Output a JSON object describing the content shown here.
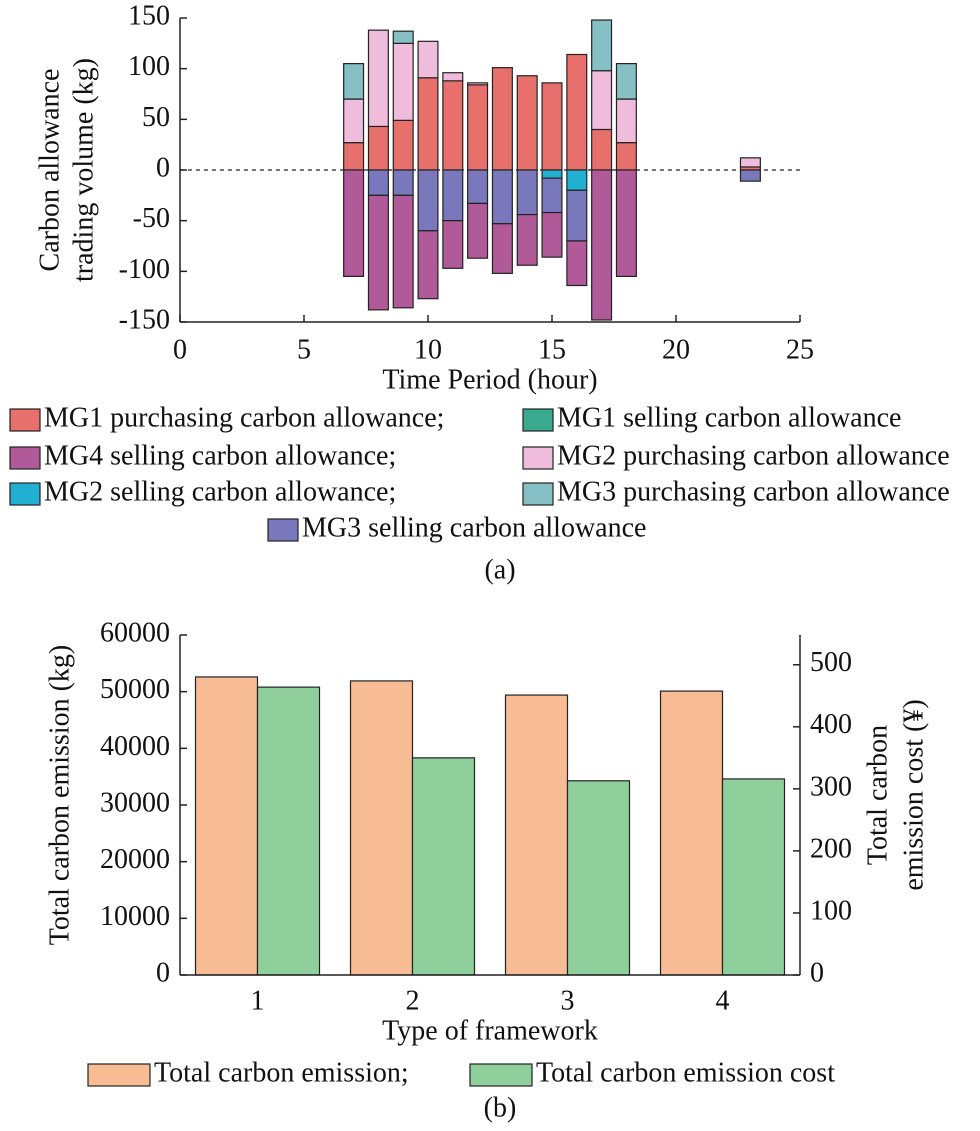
{
  "chart_data": [
    {
      "type": "stacked_bar",
      "ylabel": [
        "Carbon allowance",
        "trading volume (kg)"
      ],
      "xlabel": "Time Period (hour)",
      "caption": "(a)",
      "x": [
        7,
        8,
        9,
        10,
        11,
        12,
        13,
        14,
        15,
        16,
        17,
        18,
        23
      ],
      "xlim": [
        0,
        25
      ],
      "xticks": [
        0,
        5,
        10,
        15,
        20,
        25
      ],
      "ylim": [
        -150,
        150
      ],
      "yticks": [
        -150,
        -100,
        -50,
        0,
        50,
        100,
        150
      ],
      "zero_line": true,
      "series": [
        {
          "name": "MG1 purchasing carbon allowance;",
          "color": "#e8706c",
          "values": [
            27,
            43,
            49,
            91,
            88,
            84,
            101,
            93,
            86,
            114,
            40,
            27,
            3
          ]
        },
        {
          "name": "MG1 selling carbon allowance",
          "color": "#3aaa8e",
          "values": [
            0,
            0,
            0,
            0,
            0,
            0,
            0,
            0,
            0,
            0,
            0,
            0,
            0
          ]
        },
        {
          "name": "MG4 selling carbon allowance;",
          "color": "#b05a9a",
          "values": [
            -105,
            -113,
            -111,
            -67,
            -47,
            -54,
            -49,
            -50,
            -44,
            -44,
            -148,
            -105,
            0
          ]
        },
        {
          "name": "MG2 purchasing carbon allowance",
          "color": "#efbcdc",
          "values": [
            43,
            95,
            76,
            36,
            8,
            2,
            0,
            0,
            0,
            0,
            58,
            43,
            9
          ]
        },
        {
          "name": "MG2 selling carbon allowance;",
          "color": "#22b0d0",
          "values": [
            0,
            0,
            0,
            0,
            0,
            0,
            0,
            0,
            -8,
            -20,
            0,
            0,
            0
          ]
        },
        {
          "name": "MG3 purchasing carbon allowance",
          "color": "#86bfc4",
          "values": [
            35,
            0,
            12,
            0,
            0,
            0,
            0,
            0,
            0,
            0,
            50,
            35,
            0
          ]
        },
        {
          "name": "MG3 selling carbon allowance",
          "color": "#7a78bc",
          "values": [
            0,
            -25,
            -25,
            -60,
            -50,
            -33,
            -53,
            -44,
            -34,
            -50,
            0,
            0,
            -11
          ]
        }
      ]
    },
    {
      "type": "grouped_bar",
      "ylabel": "Total carbon emission (kg)",
      "y2label": [
        "Total carbon",
        "emission cost (¥)"
      ],
      "xlabel": "Type of framework",
      "caption": "(b)",
      "categories": [
        "1",
        "2",
        "3",
        "4"
      ],
      "ylim": [
        0,
        60000
      ],
      "yticks": [
        0,
        10000,
        20000,
        30000,
        40000,
        50000,
        60000
      ],
      "y2lim": [
        0,
        548
      ],
      "y2ticks": [
        0,
        100,
        200,
        300,
        400,
        500
      ],
      "series": [
        {
          "name": "Total carbon emission;",
          "color": "#f7bc94",
          "values": [
            52600,
            51900,
            49400,
            50100
          ]
        },
        {
          "name": "Total carbon emission cost",
          "color": "#8fcf9c",
          "axis": "y2",
          "values": [
            464,
            350,
            313,
            316
          ]
        }
      ]
    }
  ]
}
